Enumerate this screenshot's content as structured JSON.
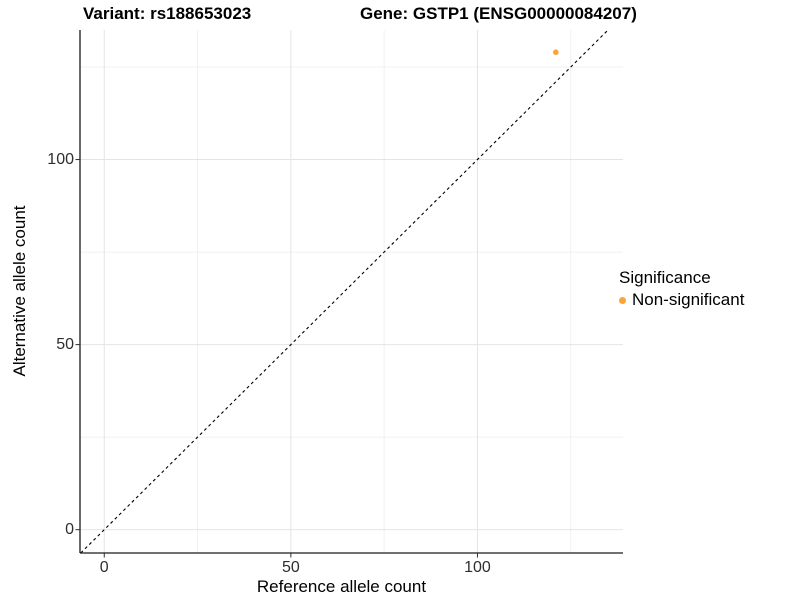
{
  "title": {
    "variant": "Variant: rs188653023",
    "gene": "Gene: GSTP1 (ENSG00000084207)"
  },
  "axes": {
    "x_label": "Reference allele count",
    "y_label": "Alternative allele count"
  },
  "legend": {
    "title": "Significance",
    "items": [
      {
        "label": "Non-significant",
        "color": "#FAA43B"
      }
    ]
  },
  "colors": {
    "point_orange": "#FAA43B",
    "grid_major": "#E4E4E4",
    "grid_minor": "#F1F1F1",
    "axis_line": "#1A1A1A",
    "tick_text": "#2E2E2E",
    "reference_line": "#000000"
  },
  "chart_data": {
    "type": "scatter",
    "title_left": "Variant: rs188653023",
    "title_right": "Gene: GSTP1 (ENSG00000084207)",
    "xlabel": "Reference allele count",
    "ylabel": "Alternative allele count",
    "x_ticks": [
      0,
      50,
      100
    ],
    "y_ticks": [
      0,
      50,
      100
    ],
    "x_minor_ticks": [
      25,
      75,
      125
    ],
    "y_minor_ticks": [
      25,
      75,
      125
    ],
    "xlim": [
      -6.5,
      139
    ],
    "ylim": [
      -6.3,
      135
    ],
    "grid": true,
    "legend_position": "right",
    "legend_title": "Significance",
    "series": [
      {
        "name": "Non-significant",
        "color": "#FAA43B",
        "points": [
          {
            "x": 121,
            "y": 129
          }
        ]
      }
    ],
    "reference_line": {
      "slope": 1,
      "intercept": 0,
      "style": "dashed",
      "color": "#000000"
    }
  }
}
